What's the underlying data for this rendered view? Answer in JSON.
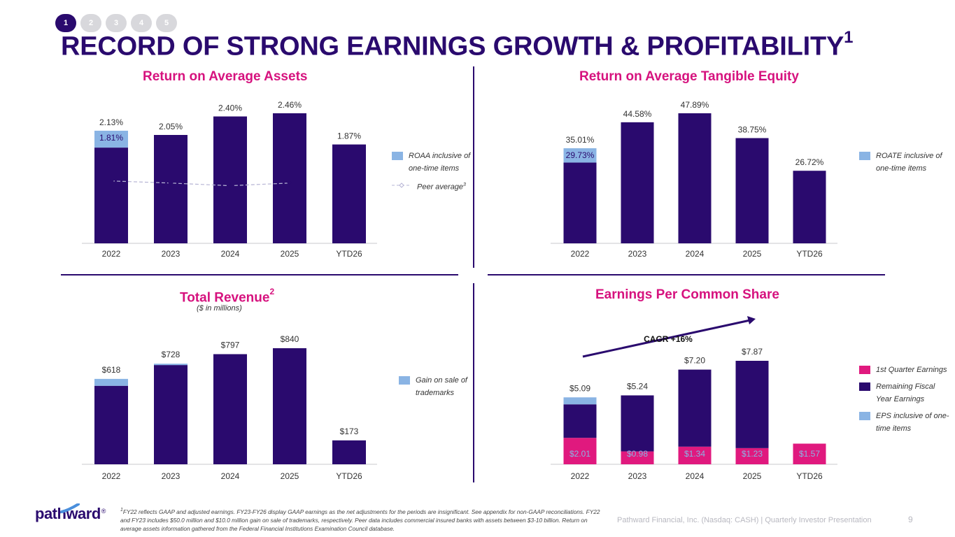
{
  "steps": [
    "1",
    "2",
    "3",
    "4",
    "5"
  ],
  "active_step": 0,
  "title": "RECORD OF STRONG EARNINGS GROWTH & PROFITABILITY",
  "title_sup": "1",
  "colors": {
    "navy": "#2a0a6e",
    "light_blue": "#8ab4e4",
    "magenta": "#e0197e",
    "pink_title": "#d6127e",
    "peer_line": "#b6b4d4"
  },
  "panels": {
    "roaa": {
      "title": "Return on Average Assets",
      "legend": {
        "one_time": "ROAA inclusive of one-time items",
        "peer": "Peer average",
        "peer_sup": "3"
      }
    },
    "roate": {
      "title": "Return on Average Tangible Equity",
      "legend": {
        "one_time": "ROATE inclusive of one-time items"
      }
    },
    "revenue": {
      "title": "Total Revenue",
      "title_sup": "2",
      "subtitle": "($ in millions)",
      "legend": {
        "gain": "Gain on sale of trademarks"
      }
    },
    "eps": {
      "title": "Earnings Per Common Share",
      "legend": {
        "q1": "1st Quarter Earnings",
        "remaining": "Remaining Fiscal Year Earnings",
        "one_time": "EPS inclusive of one-time items"
      }
    }
  },
  "chart_data": [
    {
      "id": "roaa",
      "type": "bar",
      "title": "Return on Average Assets",
      "categories": [
        "2022",
        "2023",
        "2024",
        "2025",
        "YTD26"
      ],
      "series": [
        {
          "name": "ROAA",
          "values": [
            1.81,
            2.05,
            2.4,
            2.46,
            1.87
          ]
        },
        {
          "name": "ROAA inclusive of one-time items",
          "values": [
            2.13,
            null,
            null,
            null,
            null
          ]
        },
        {
          "name": "Peer average",
          "values": [
            1.18,
            1.14,
            1.09,
            1.14,
            null
          ]
        }
      ],
      "labels_total": [
        "2.13%",
        "2.05%",
        "2.40%",
        "2.46%",
        "1.87%"
      ],
      "labels_inner": [
        "1.81%",
        null,
        null,
        null,
        null
      ],
      "ylim": [
        0,
        2.46
      ]
    },
    {
      "id": "roate",
      "type": "bar",
      "title": "Return on Average Tangible Equity",
      "categories": [
        "2022",
        "2023",
        "2024",
        "2025",
        "YTD26"
      ],
      "series": [
        {
          "name": "ROATE",
          "values": [
            29.73,
            44.58,
            47.89,
            38.75,
            26.72
          ]
        },
        {
          "name": "ROATE inclusive of one-time items",
          "values": [
            35.01,
            null,
            null,
            null,
            null
          ]
        }
      ],
      "labels_total": [
        "35.01%",
        "44.58%",
        "47.89%",
        "38.75%",
        "26.72%"
      ],
      "labels_inner": [
        "29.73%",
        null,
        null,
        null,
        null
      ],
      "ylim": [
        0,
        47.89
      ]
    },
    {
      "id": "revenue",
      "type": "bar",
      "title": "Total Revenue",
      "subtitle": "($ in millions)",
      "categories": [
        "2022",
        "2023",
        "2024",
        "2025",
        "YTD26"
      ],
      "series": [
        {
          "name": "Total Revenue",
          "values": [
            568,
            718,
            797,
            840,
            173
          ]
        },
        {
          "name": "Gain on sale of trademarks",
          "values": [
            50,
            10,
            0,
            0,
            0
          ]
        }
      ],
      "labels_total": [
        "$618",
        "$728",
        "$797",
        "$840",
        "$173"
      ],
      "ylim": [
        0,
        840
      ]
    },
    {
      "id": "eps",
      "type": "bar",
      "title": "Earnings Per Common Share",
      "categories": [
        "2022",
        "2023",
        "2024",
        "2025",
        "YTD26"
      ],
      "series": [
        {
          "name": "1st Quarter Earnings",
          "values": [
            2.01,
            0.98,
            1.34,
            1.23,
            1.57
          ]
        },
        {
          "name": "Remaining Fiscal Year Earnings",
          "values": [
            2.55,
            4.26,
            5.86,
            6.64,
            0
          ]
        },
        {
          "name": "EPS inclusive of one-time items",
          "values": [
            0.53,
            0,
            0,
            0,
            0
          ]
        }
      ],
      "labels_total": [
        "$5.09",
        "$5.24",
        "$7.20",
        "$7.87",
        null
      ],
      "labels_q1": [
        "$2.01",
        "$0.98",
        "$1.34",
        "$1.23",
        "$1.57"
      ],
      "annotation": "CAGR +16%",
      "ylim": [
        0,
        7.87
      ]
    }
  ],
  "footer": {
    "logo": "pathward",
    "logo_mark": "®",
    "footnote": "FY22 reflects GAAP and adjusted earnings. FY23-FY26 display GAAP earnings as the net adjustments for the periods are insignificant. See appendix for non-GAAP reconciliations. FY22 and FY23 includes $50.0 million and $10.0 million gain on sale of trademarks, respectively.  Peer data includes commercial insured banks with assets between $3-10 billion. Return on average assets information gathered from the Federal Financial Institutions Examination Council database.",
    "footnote_sups": [
      "1",
      "2",
      "3"
    ],
    "presentation": "Pathward Financial, Inc. (Nasdaq: CASH) | Quarterly Investor Presentation",
    "page": "9"
  }
}
